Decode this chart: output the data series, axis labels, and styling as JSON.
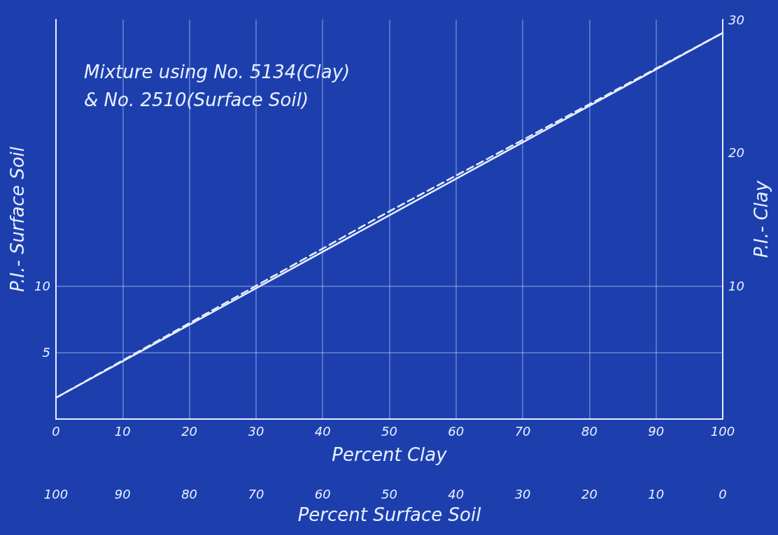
{
  "chart_data": {
    "type": "line",
    "annotations": [
      "Mixture using No. 5134(Clay)",
      "& No. 2510(Surface Soil)"
    ],
    "xlabel": "Percent Clay",
    "ylabel": "P.I.- Surface Soil",
    "y2label": "P.I.- Clay",
    "x2label": "Percent Surface Soil",
    "series": [
      {
        "x": [
          0,
          100
        ],
        "values": [
          1.6,
          29
        ],
        "color": "#e8f0ff",
        "line_style": "solid"
      },
      {
        "x": [
          0,
          50,
          100
        ],
        "values": [
          1.6,
          15.6,
          29
        ],
        "color": "#e8f0ff",
        "line_style": "dashed"
      }
    ],
    "xlim": [
      0,
      100
    ],
    "xticks": [
      0,
      10,
      20,
      30,
      40,
      50,
      60,
      70,
      80,
      90,
      100
    ],
    "x2lim": [
      100,
      0
    ],
    "x2ticks": [
      100,
      90,
      80,
      70,
      60,
      50,
      40,
      30,
      20,
      10,
      0
    ],
    "ylim": [
      0,
      30
    ],
    "yticks": [
      5,
      10
    ],
    "y2lim": [
      0,
      30
    ],
    "y2ticks": [
      10,
      20,
      30
    ],
    "grid": true,
    "marker": "none"
  }
}
